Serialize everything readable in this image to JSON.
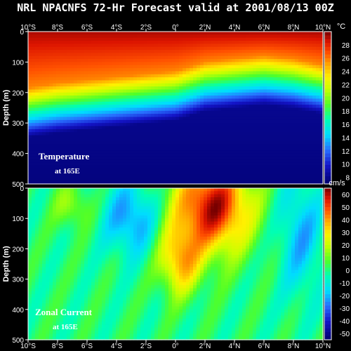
{
  "title": "NRL NPACNFS 72-Hr Forecast valid at 2001/08/13 00Z",
  "x_ticks": [
    "10°S",
    "8°S",
    "6°S",
    "4°S",
    "2°S",
    "0°",
    "2°N",
    "4°N",
    "6°N",
    "8°N",
    "10°N"
  ],
  "chart_data": [
    {
      "type": "heatmap",
      "name_label": "Temperature",
      "location_label": "at 165E",
      "ylabel": "Depth (m)",
      "unit": "°C",
      "x_range": [
        -10,
        10
      ],
      "ylim": [
        500,
        0
      ],
      "y_ticks": [
        0,
        100,
        200,
        300,
        400,
        500
      ],
      "colorbar_ticks": [
        8,
        10,
        12,
        14,
        16,
        18,
        20,
        22,
        24,
        26,
        28
      ],
      "colorbar_range": [
        7,
        30
      ],
      "thermocline_depth_profile": {
        "lat": [
          -10,
          -8,
          -6,
          -4,
          -2,
          0,
          2,
          4,
          6,
          8,
          10
        ],
        "depth_20C": [
          225,
          210,
          200,
          190,
          180,
          170,
          140,
          130,
          120,
          130,
          150
        ]
      }
    },
    {
      "type": "heatmap",
      "name_label": "Zonal Current",
      "location_label": "at 165E",
      "ylabel": "Depth (m)",
      "unit": "cm/s",
      "x_range": [
        -10,
        10
      ],
      "ylim": [
        500,
        0
      ],
      "y_ticks": [
        0,
        100,
        200,
        300,
        400,
        500
      ],
      "colorbar_ticks": [
        60,
        50,
        40,
        30,
        20,
        10,
        0,
        -10,
        -20,
        -30,
        -40,
        -50
      ],
      "colorbar_range": [
        -55,
        65
      ],
      "core": {
        "lat": 2.5,
        "depth": 60,
        "max_speed": 60
      }
    }
  ],
  "colors": {
    "background": "#000000",
    "text": "#ffffff"
  }
}
